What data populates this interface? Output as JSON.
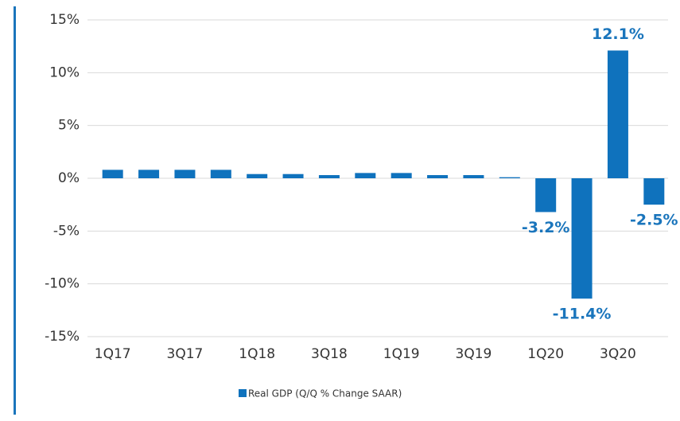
{
  "chart_data": {
    "type": "bar",
    "categories": [
      "1Q17",
      null,
      "3Q17",
      null,
      "1Q18",
      null,
      "3Q18",
      null,
      "1Q19",
      null,
      "3Q19",
      null,
      "1Q20",
      null,
      "3Q20",
      null
    ],
    "series": [
      {
        "name": "Real GDP (Q/Q % Change SAAR)",
        "color": "#0f72bd",
        "values": [
          0.8,
          0.8,
          0.8,
          0.8,
          0.4,
          0.4,
          0.3,
          0.5,
          0.5,
          0.3,
          0.3,
          0.1,
          -3.2,
          -11.4,
          12.1,
          -2.5
        ],
        "value_labels": [
          null,
          null,
          null,
          null,
          null,
          null,
          null,
          null,
          null,
          null,
          null,
          null,
          "-3.2%",
          "-11.4%",
          "12.1%",
          "-2.5%"
        ]
      }
    ],
    "ylim": [
      -15,
      15
    ],
    "yticks": [
      {
        "value": -15,
        "label": "-15%"
      },
      {
        "value": -10,
        "label": "-10%"
      },
      {
        "value": -5,
        "label": "-5%"
      },
      {
        "value": 0,
        "label": "0%"
      },
      {
        "value": 5,
        "label": "5%"
      },
      {
        "value": 10,
        "label": "10%"
      },
      {
        "value": 15,
        "label": "15%"
      }
    ],
    "grid": true,
    "legend": "bottom"
  }
}
